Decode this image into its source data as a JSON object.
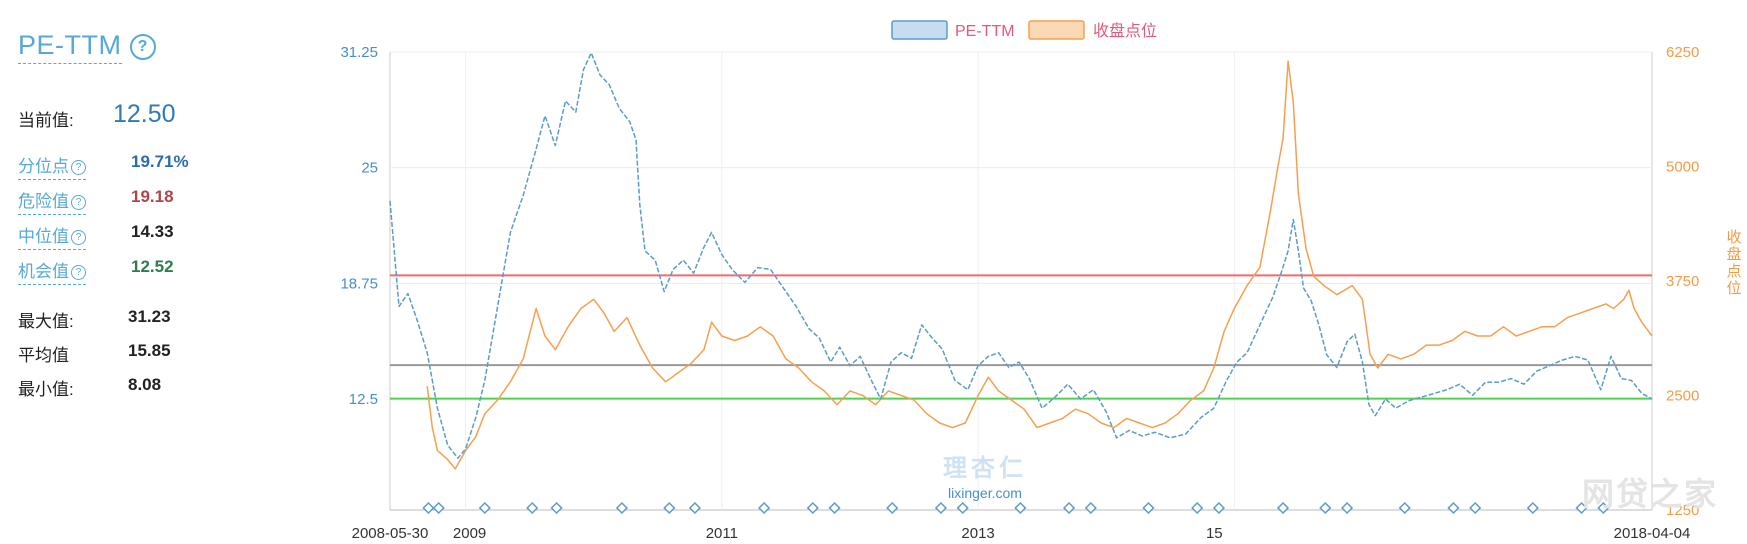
{
  "panel": {
    "title": "PE-TTM",
    "current_label": "当前值:",
    "current_value": "12.50",
    "rows": [
      {
        "label": "分位点",
        "value": "19.71%",
        "color": "#2b6cb0",
        "link": true
      },
      {
        "label": "危险值",
        "value": "19.18",
        "color": "#b0454b",
        "link": true
      },
      {
        "label": "中位值",
        "value": "14.33",
        "color": "#222222",
        "link": true
      },
      {
        "label": "机会值",
        "value": "12.52",
        "color": "#2e7d4f",
        "link": true
      },
      {
        "label": "最大值:",
        "value": "31.23",
        "color": "#222222",
        "link": false
      },
      {
        "label": "平均值",
        "value": "15.85",
        "color": "#222222",
        "link": false
      },
      {
        "label": "最小值:",
        "value": "8.08",
        "color": "#222222",
        "link": false
      }
    ]
  },
  "watermarks": {
    "center_cn": "理杏仁",
    "center_en": "lixinger.com",
    "corner": "网贷之家"
  },
  "chart_data": {
    "type": "line",
    "legend": [
      "PE-TTM",
      "收盘点位"
    ],
    "legend_placement": "top-center",
    "x_ticks": [
      "2008-05-30",
      "2009",
      "2011",
      "2013",
      "15",
      "2018-04-04"
    ],
    "x_range": [
      "2008-05-30",
      "2018-04-04"
    ],
    "y_left": {
      "ticks": [
        "31.25",
        "25",
        "18.75",
        "12.5"
      ],
      "range": [
        6.5,
        31.25
      ]
    },
    "y_right": {
      "label": "收盘点位",
      "ticks": [
        "6250",
        "5000",
        "3750",
        "2500",
        "1250"
      ],
      "range": [
        1250,
        6250
      ]
    },
    "reference_lines": [
      {
        "value": 19.18,
        "color": "#f26b6b"
      },
      {
        "value": 14.33,
        "color": "#999999"
      },
      {
        "value": 12.52,
        "color": "#4fd14f"
      }
    ],
    "series": [
      {
        "name": "PE-TTM",
        "axis": "left",
        "color": "#5b9bc8",
        "dashed": true,
        "points": [
          [
            2008.41,
            23.2
          ],
          [
            2008.48,
            17.5
          ],
          [
            2008.55,
            18.2
          ],
          [
            2008.62,
            16.8
          ],
          [
            2008.7,
            15.0
          ],
          [
            2008.78,
            12.0
          ],
          [
            2008.86,
            10.0
          ],
          [
            2008.94,
            9.3
          ],
          [
            2009.0,
            9.8
          ],
          [
            2009.08,
            11.5
          ],
          [
            2009.15,
            13.5
          ],
          [
            2009.25,
            17.5
          ],
          [
            2009.35,
            21.5
          ],
          [
            2009.45,
            23.5
          ],
          [
            2009.55,
            26.0
          ],
          [
            2009.62,
            27.8
          ],
          [
            2009.7,
            26.2
          ],
          [
            2009.78,
            28.6
          ],
          [
            2009.86,
            28.0
          ],
          [
            2009.92,
            30.3
          ],
          [
            2009.98,
            31.2
          ],
          [
            2010.05,
            30.0
          ],
          [
            2010.12,
            29.5
          ],
          [
            2010.2,
            28.2
          ],
          [
            2010.28,
            27.5
          ],
          [
            2010.33,
            26.5
          ],
          [
            2010.36,
            23.0
          ],
          [
            2010.4,
            20.5
          ],
          [
            2010.48,
            20.0
          ],
          [
            2010.55,
            18.3
          ],
          [
            2010.62,
            19.5
          ],
          [
            2010.7,
            20.0
          ],
          [
            2010.78,
            19.3
          ],
          [
            2010.86,
            20.7
          ],
          [
            2010.92,
            21.5
          ],
          [
            2011.0,
            20.3
          ],
          [
            2011.08,
            19.5
          ],
          [
            2011.18,
            18.8
          ],
          [
            2011.28,
            19.6
          ],
          [
            2011.38,
            19.5
          ],
          [
            2011.48,
            18.5
          ],
          [
            2011.58,
            17.5
          ],
          [
            2011.68,
            16.3
          ],
          [
            2011.76,
            15.8
          ],
          [
            2011.85,
            14.5
          ],
          [
            2011.92,
            15.3
          ],
          [
            2012.0,
            14.3
          ],
          [
            2012.08,
            14.8
          ],
          [
            2012.16,
            13.6
          ],
          [
            2012.24,
            12.5
          ],
          [
            2012.32,
            14.5
          ],
          [
            2012.4,
            15.0
          ],
          [
            2012.48,
            14.7
          ],
          [
            2012.56,
            16.5
          ],
          [
            2012.64,
            15.8
          ],
          [
            2012.72,
            15.2
          ],
          [
            2012.82,
            13.5
          ],
          [
            2012.92,
            13.0
          ],
          [
            2013.0,
            14.3
          ],
          [
            2013.08,
            14.8
          ],
          [
            2013.16,
            15.0
          ],
          [
            2013.24,
            14.2
          ],
          [
            2013.32,
            14.5
          ],
          [
            2013.4,
            13.6
          ],
          [
            2013.5,
            12.0
          ],
          [
            2013.6,
            12.6
          ],
          [
            2013.7,
            13.3
          ],
          [
            2013.8,
            12.5
          ],
          [
            2013.9,
            13.0
          ],
          [
            2014.0,
            11.8
          ],
          [
            2014.08,
            10.4
          ],
          [
            2014.18,
            10.8
          ],
          [
            2014.28,
            10.5
          ],
          [
            2014.38,
            10.7
          ],
          [
            2014.5,
            10.4
          ],
          [
            2014.62,
            10.6
          ],
          [
            2014.74,
            11.5
          ],
          [
            2014.84,
            12.0
          ],
          [
            2014.94,
            13.5
          ],
          [
            2015.02,
            14.5
          ],
          [
            2015.1,
            15.0
          ],
          [
            2015.2,
            16.5
          ],
          [
            2015.3,
            18.0
          ],
          [
            2015.37,
            19.4
          ],
          [
            2015.42,
            20.5
          ],
          [
            2015.46,
            22.2
          ],
          [
            2015.5,
            20.5
          ],
          [
            2015.54,
            18.5
          ],
          [
            2015.6,
            17.8
          ],
          [
            2015.66,
            16.5
          ],
          [
            2015.72,
            14.9
          ],
          [
            2015.8,
            14.2
          ],
          [
            2015.88,
            15.6
          ],
          [
            2015.94,
            16.0
          ],
          [
            2016.0,
            14.5
          ],
          [
            2016.05,
            12.2
          ],
          [
            2016.1,
            11.6
          ],
          [
            2016.18,
            12.5
          ],
          [
            2016.26,
            12.0
          ],
          [
            2016.36,
            12.4
          ],
          [
            2016.46,
            12.6
          ],
          [
            2016.56,
            12.8
          ],
          [
            2016.66,
            13.0
          ],
          [
            2016.76,
            13.3
          ],
          [
            2016.86,
            12.7
          ],
          [
            2016.96,
            13.4
          ],
          [
            2017.06,
            13.4
          ],
          [
            2017.16,
            13.6
          ],
          [
            2017.26,
            13.3
          ],
          [
            2017.36,
            14.0
          ],
          [
            2017.46,
            14.3
          ],
          [
            2017.56,
            14.6
          ],
          [
            2017.66,
            14.8
          ],
          [
            2017.76,
            14.6
          ],
          [
            2017.86,
            13.0
          ],
          [
            2017.94,
            14.8
          ],
          [
            2018.02,
            13.6
          ],
          [
            2018.1,
            13.5
          ],
          [
            2018.18,
            12.8
          ],
          [
            2018.26,
            12.5
          ]
        ]
      },
      {
        "name": "收盘点位",
        "axis": "right",
        "color": "#f5a050",
        "dashed": false,
        "points": [
          [
            2008.7,
            2600
          ],
          [
            2008.74,
            2150
          ],
          [
            2008.78,
            1900
          ],
          [
            2008.86,
            1800
          ],
          [
            2008.92,
            1700
          ],
          [
            2009.0,
            1900
          ],
          [
            2009.08,
            2050
          ],
          [
            2009.15,
            2300
          ],
          [
            2009.25,
            2450
          ],
          [
            2009.35,
            2650
          ],
          [
            2009.45,
            2900
          ],
          [
            2009.55,
            3450
          ],
          [
            2009.62,
            3150
          ],
          [
            2009.7,
            3000
          ],
          [
            2009.8,
            3250
          ],
          [
            2009.9,
            3450
          ],
          [
            2010.0,
            3550
          ],
          [
            2010.08,
            3400
          ],
          [
            2010.16,
            3200
          ],
          [
            2010.26,
            3350
          ],
          [
            2010.36,
            3050
          ],
          [
            2010.46,
            2800
          ],
          [
            2010.56,
            2650
          ],
          [
            2010.66,
            2750
          ],
          [
            2010.76,
            2850
          ],
          [
            2010.86,
            3000
          ],
          [
            2010.92,
            3300
          ],
          [
            2011.0,
            3150
          ],
          [
            2011.1,
            3100
          ],
          [
            2011.2,
            3150
          ],
          [
            2011.3,
            3250
          ],
          [
            2011.4,
            3150
          ],
          [
            2011.5,
            2900
          ],
          [
            2011.6,
            2800
          ],
          [
            2011.7,
            2650
          ],
          [
            2011.8,
            2550
          ],
          [
            2011.9,
            2400
          ],
          [
            2012.0,
            2550
          ],
          [
            2012.1,
            2500
          ],
          [
            2012.2,
            2400
          ],
          [
            2012.3,
            2550
          ],
          [
            2012.4,
            2500
          ],
          [
            2012.5,
            2450
          ],
          [
            2012.6,
            2300
          ],
          [
            2012.7,
            2200
          ],
          [
            2012.8,
            2150
          ],
          [
            2012.9,
            2200
          ],
          [
            2013.0,
            2500
          ],
          [
            2013.08,
            2700
          ],
          [
            2013.16,
            2550
          ],
          [
            2013.26,
            2450
          ],
          [
            2013.36,
            2350
          ],
          [
            2013.46,
            2150
          ],
          [
            2013.56,
            2200
          ],
          [
            2013.66,
            2250
          ],
          [
            2013.76,
            2350
          ],
          [
            2013.86,
            2300
          ],
          [
            2013.96,
            2200
          ],
          [
            2014.06,
            2150
          ],
          [
            2014.16,
            2250
          ],
          [
            2014.26,
            2200
          ],
          [
            2014.36,
            2150
          ],
          [
            2014.46,
            2200
          ],
          [
            2014.56,
            2300
          ],
          [
            2014.66,
            2450
          ],
          [
            2014.76,
            2550
          ],
          [
            2014.84,
            2800
          ],
          [
            2014.92,
            3200
          ],
          [
            2015.0,
            3450
          ],
          [
            2015.1,
            3700
          ],
          [
            2015.2,
            3900
          ],
          [
            2015.28,
            4500
          ],
          [
            2015.34,
            5000
          ],
          [
            2015.38,
            5300
          ],
          [
            2015.42,
            6150
          ],
          [
            2015.46,
            5700
          ],
          [
            2015.5,
            4700
          ],
          [
            2015.56,
            4100
          ],
          [
            2015.62,
            3800
          ],
          [
            2015.7,
            3700
          ],
          [
            2015.8,
            3600
          ],
          [
            2015.86,
            3650
          ],
          [
            2015.92,
            3700
          ],
          [
            2016.0,
            3550
          ],
          [
            2016.06,
            2950
          ],
          [
            2016.12,
            2800
          ],
          [
            2016.2,
            2950
          ],
          [
            2016.3,
            2900
          ],
          [
            2016.4,
            2950
          ],
          [
            2016.5,
            3050
          ],
          [
            2016.6,
            3050
          ],
          [
            2016.7,
            3100
          ],
          [
            2016.8,
            3200
          ],
          [
            2016.9,
            3150
          ],
          [
            2017.0,
            3150
          ],
          [
            2017.1,
            3250
          ],
          [
            2017.2,
            3150
          ],
          [
            2017.3,
            3200
          ],
          [
            2017.4,
            3250
          ],
          [
            2017.5,
            3250
          ],
          [
            2017.6,
            3350
          ],
          [
            2017.7,
            3400
          ],
          [
            2017.8,
            3450
          ],
          [
            2017.9,
            3500
          ],
          [
            2017.96,
            3450
          ],
          [
            2018.04,
            3550
          ],
          [
            2018.08,
            3650
          ],
          [
            2018.12,
            3450
          ],
          [
            2018.18,
            3300
          ],
          [
            2018.26,
            3150
          ]
        ]
      }
    ],
    "markers": [
      2008.71,
      2008.79,
      2009.15,
      2009.52,
      2009.71,
      2010.22,
      2010.59,
      2010.79,
      2011.33,
      2011.71,
      2011.88,
      2012.33,
      2012.71,
      2012.88,
      2013.33,
      2013.71,
      2013.88,
      2014.33,
      2014.71,
      2014.88,
      2015.38,
      2015.71,
      2015.88,
      2016.33,
      2016.71,
      2016.88,
      2017.33,
      2017.71,
      2017.88
    ]
  }
}
